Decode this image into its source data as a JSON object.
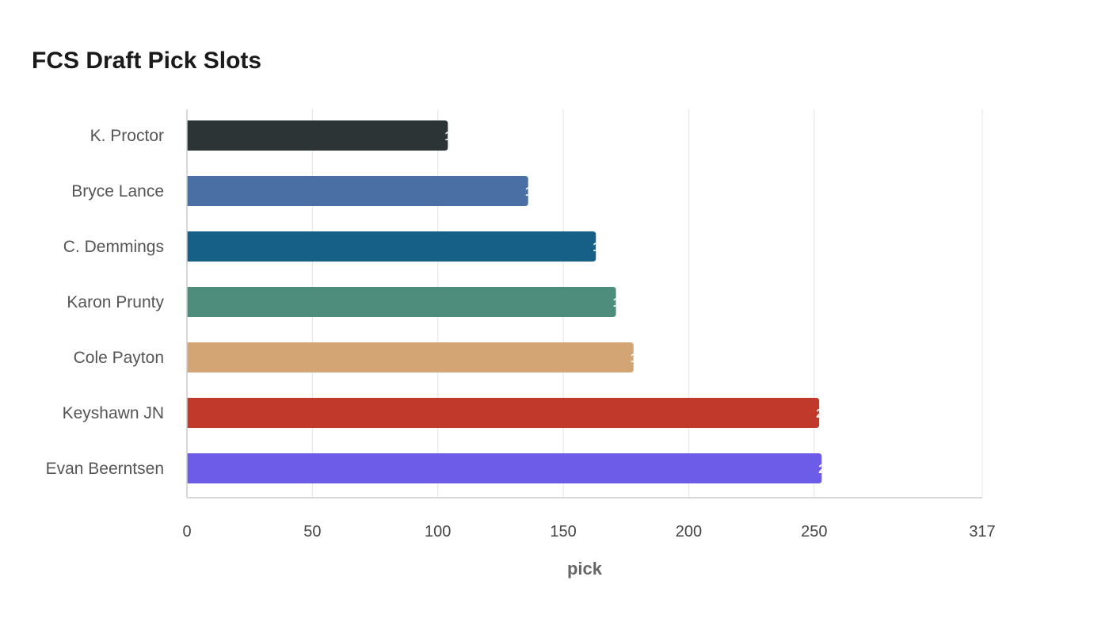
{
  "chart_data": {
    "type": "bar",
    "orientation": "horizontal",
    "title": "FCS Draft Pick Slots",
    "xlabel": "pick",
    "ylabel": "",
    "categories": [
      "K. Proctor",
      "Bryce Lance",
      "C. Demmings",
      "Karon Prunty",
      "Cole Payton",
      "Keyshawn JN",
      "Evan Beerntsen"
    ],
    "values": [
      104,
      136,
      163,
      171,
      178,
      252,
      253
    ],
    "colors": [
      "#2d3436",
      "#4a6fa5",
      "#166088",
      "#4e8d7c",
      "#d4a574",
      "#c0392b",
      "#6c5ce7"
    ],
    "xticks": [
      0,
      50,
      100,
      150,
      200,
      250,
      317
    ],
    "xlim": [
      0,
      317
    ],
    "grid": true
  }
}
